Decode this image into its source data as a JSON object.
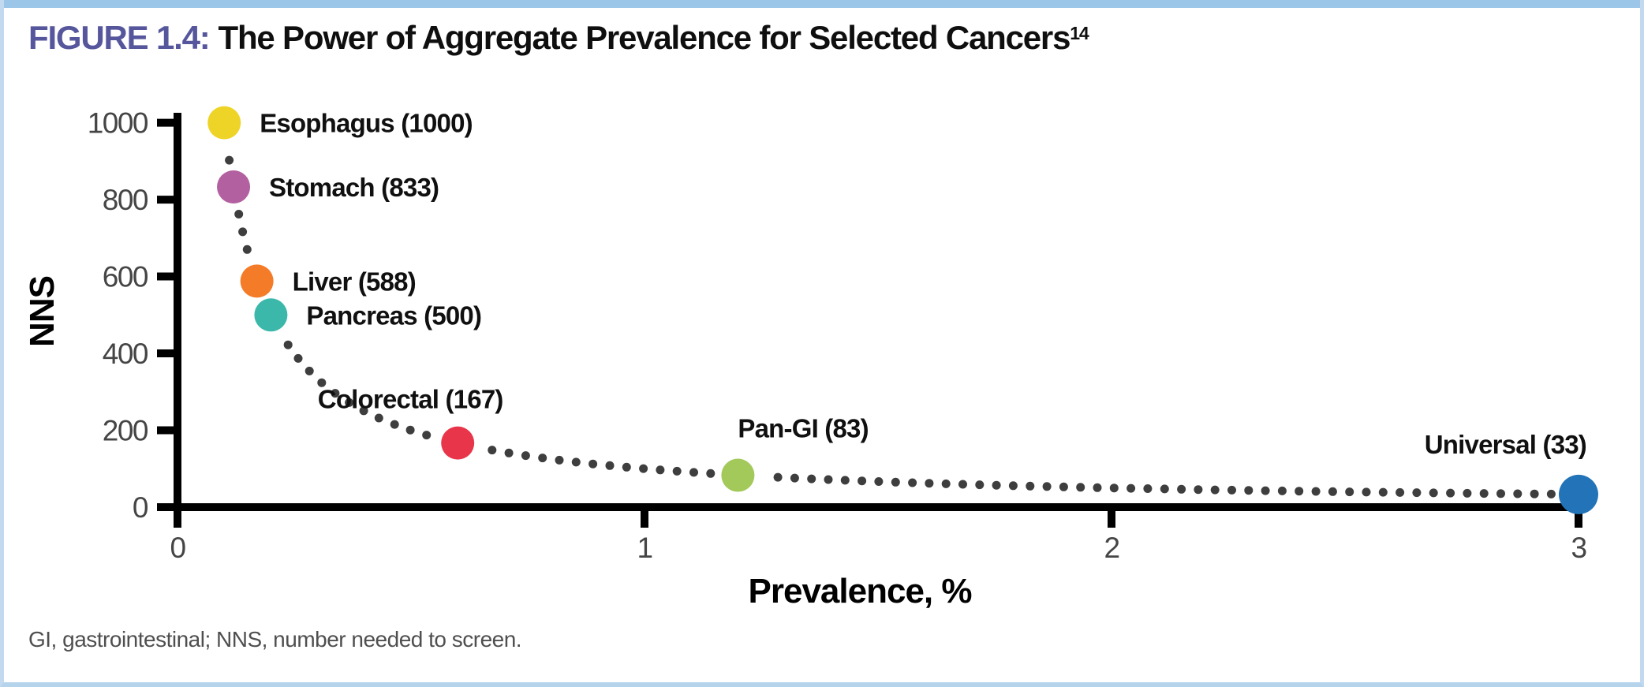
{
  "header": {
    "figure_label": "FIGURE 1.4:",
    "title": "The Power of Aggregate Prevalence for Selected Cancers",
    "reference": "14"
  },
  "footnote": "GI, gastrointestinal; NNS, number needed to screen.",
  "colors": {
    "top_bar": "#9cc6e8",
    "page_border": "#c3d9ef",
    "figure_label": "#56569c",
    "axis": "#000000",
    "tick_text": "#454545",
    "dotted_curve": "#3e3e3e"
  },
  "chart_data": {
    "type": "scatter",
    "title": "The Power of Aggregate Prevalence for Selected Cancers",
    "xlabel": "Prevalence, %",
    "ylabel": "NNS",
    "xlim": [
      0,
      3
    ],
    "ylim": [
      0,
      1000
    ],
    "x_ticks": [
      0,
      1,
      2,
      3
    ],
    "y_ticks": [
      0,
      200,
      400,
      600,
      800,
      1000
    ],
    "grid": false,
    "trend_curve": "dotted curve following NNS = 100 / prevalence from first to last point",
    "points": [
      {
        "label": "Esophagus",
        "display": "Esophagus (1000)",
        "nns": 1000,
        "prevalence": 0.1,
        "color": "#eed427",
        "label_position": "right"
      },
      {
        "label": "Stomach",
        "display": "Stomach (833)",
        "nns": 833,
        "prevalence": 0.12,
        "color": "#b2609f",
        "label_position": "right"
      },
      {
        "label": "Liver",
        "display": "Liver (588)",
        "nns": 588,
        "prevalence": 0.17,
        "color": "#f47b28",
        "label_position": "right"
      },
      {
        "label": "Pancreas",
        "display": "Pancreas (500)",
        "nns": 500,
        "prevalence": 0.2,
        "color": "#3cb8ab",
        "label_position": "right"
      },
      {
        "label": "Colorectal",
        "display": "Colorectal (167)",
        "nns": 167,
        "prevalence": 0.6,
        "color": "#e8354a",
        "label_position": "above-left"
      },
      {
        "label": "Pan-GI",
        "display": "Pan-GI (83)",
        "nns": 83,
        "prevalence": 1.2,
        "color": "#a2c95a",
        "label_position": "above-right"
      },
      {
        "label": "Universal",
        "display": "Universal (33)",
        "nns": 33,
        "prevalence": 3.0,
        "color": "#2273b7",
        "label_position": "above-end"
      }
    ]
  }
}
